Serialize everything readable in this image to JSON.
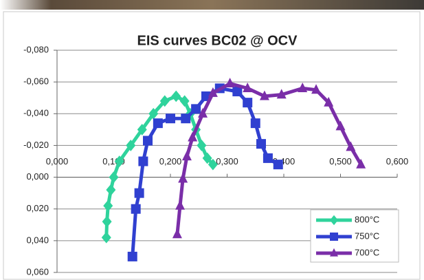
{
  "chart_data": {
    "type": "scatter-line",
    "title": "EIS curves BC02 @ OCV",
    "ylim": [
      -0.08,
      0.06
    ],
    "y_inverted": true,
    "yticks": [
      {
        "value": -0.08,
        "label": "-0,080"
      },
      {
        "value": -0.06,
        "label": "-0,060"
      },
      {
        "value": -0.04,
        "label": "-0,040"
      },
      {
        "value": -0.02,
        "label": "-0,020"
      },
      {
        "value": 0,
        "label": "0,000"
      },
      {
        "value": 0.02,
        "label": "0,020"
      },
      {
        "value": 0.04,
        "label": "0,040"
      },
      {
        "value": 0.06,
        "label": "0,060"
      }
    ],
    "xlim": [
      0,
      0.6
    ],
    "xticks": [
      {
        "value": 0,
        "label": "0,000"
      },
      {
        "value": 0.1,
        "label": "0,100"
      },
      {
        "value": 0.2,
        "label": "0,200"
      },
      {
        "value": 0.3,
        "label": "0,300"
      },
      {
        "value": 0.4,
        "label": "0,400"
      },
      {
        "value": 0.5,
        "label": "0,500"
      },
      {
        "value": 0.6,
        "label": "0,600"
      }
    ],
    "grid": true,
    "legend": "bottom-right",
    "series": [
      {
        "name": "800°C",
        "color": "#2fd39c",
        "marker": "diamond",
        "x": [
          0.087,
          0.088,
          0.09,
          0.095,
          0.1,
          0.11,
          0.13,
          0.15,
          0.17,
          0.19,
          0.21,
          0.225,
          0.235,
          0.245,
          0.255,
          0.265,
          0.275
        ],
        "values": [
          0.038,
          0.028,
          0.018,
          0.008,
          0.0,
          -0.01,
          -0.02,
          -0.03,
          -0.04,
          -0.048,
          -0.051,
          -0.048,
          -0.04,
          -0.03,
          -0.02,
          -0.012,
          -0.008
        ]
      },
      {
        "name": "750°C",
        "color": "#3040d0",
        "marker": "square",
        "x": [
          0.133,
          0.139,
          0.145,
          0.152,
          0.16,
          0.178,
          0.2,
          0.227,
          0.245,
          0.263,
          0.287,
          0.318,
          0.336,
          0.35,
          0.36,
          0.372,
          0.39
        ],
        "values": [
          0.05,
          0.02,
          0.01,
          -0.01,
          -0.023,
          -0.034,
          -0.037,
          -0.037,
          -0.043,
          -0.051,
          -0.056,
          -0.054,
          -0.047,
          -0.034,
          -0.021,
          -0.012,
          -0.008
        ]
      },
      {
        "name": "700°C",
        "color": "#7a2ea8",
        "marker": "triangle",
        "x": [
          0.212,
          0.217,
          0.222,
          0.229,
          0.239,
          0.257,
          0.275,
          0.305,
          0.336,
          0.366,
          0.396,
          0.433,
          0.457,
          0.479,
          0.5,
          0.518,
          0.536
        ],
        "values": [
          0.036,
          0.018,
          0.001,
          -0.013,
          -0.025,
          -0.04,
          -0.053,
          -0.059,
          -0.056,
          -0.051,
          -0.052,
          -0.056,
          -0.055,
          -0.047,
          -0.032,
          -0.019,
          -0.008
        ]
      }
    ]
  }
}
